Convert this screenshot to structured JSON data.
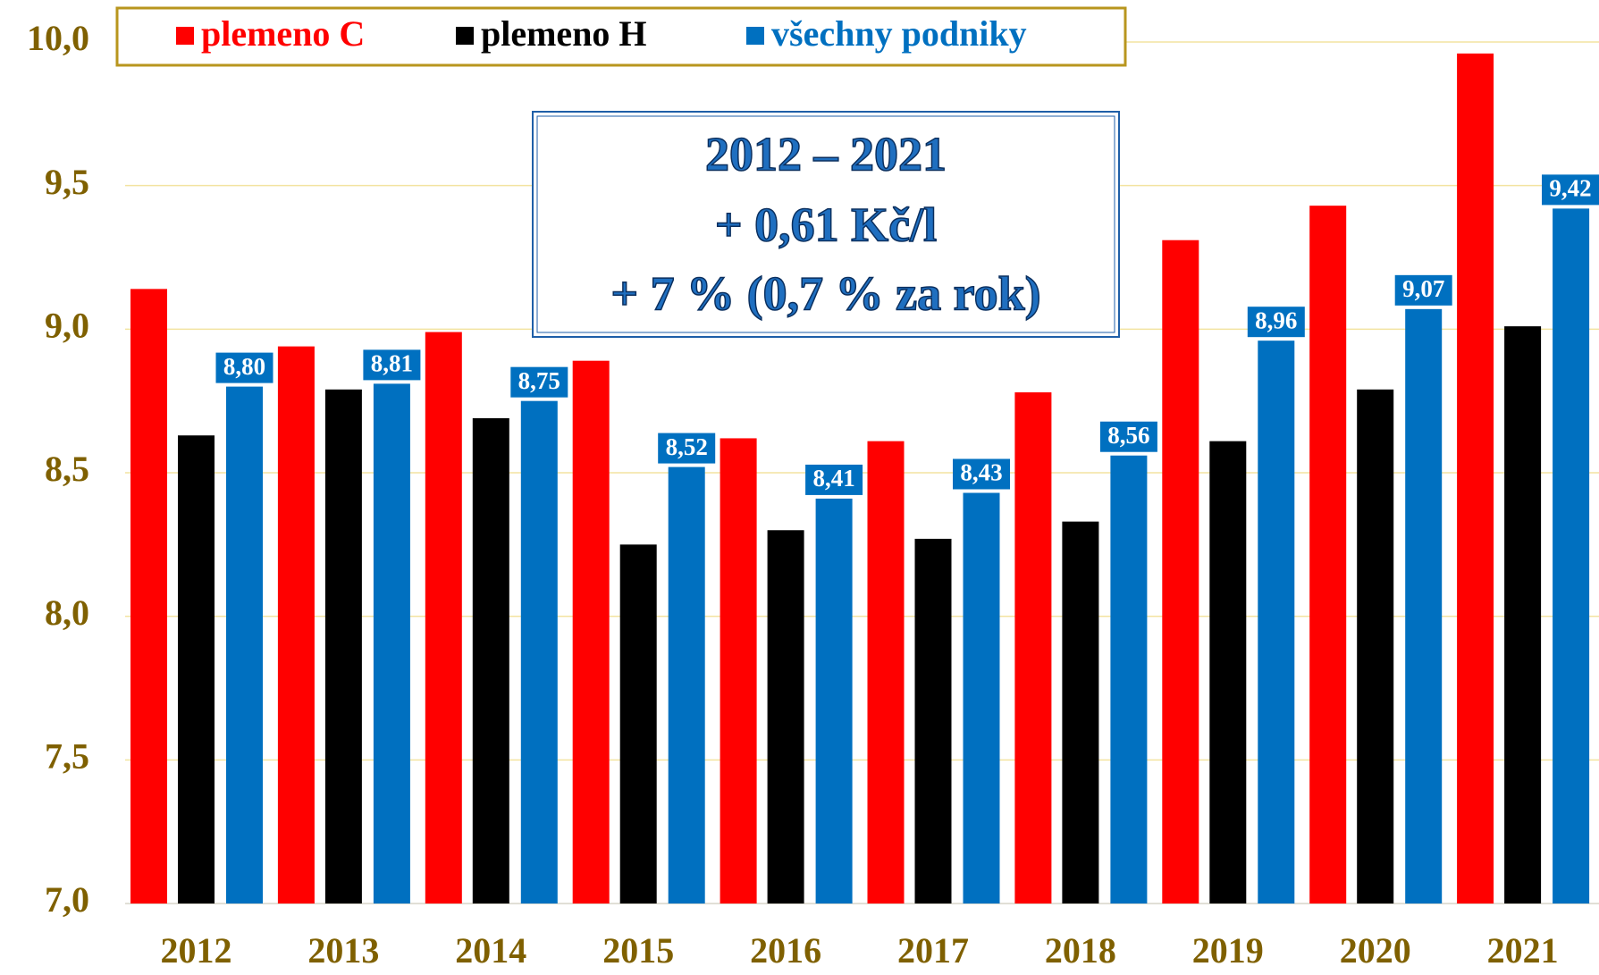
{
  "chart_data": {
    "type": "bar",
    "categories": [
      "2012",
      "2013",
      "2014",
      "2015",
      "2016",
      "2017",
      "2018",
      "2019",
      "2020",
      "2021"
    ],
    "series": [
      {
        "name": "plemeno C",
        "color": "#ff0000",
        "values": [
          9.14,
          8.94,
          8.99,
          8.89,
          8.62,
          8.61,
          8.78,
          9.31,
          9.43,
          9.96
        ]
      },
      {
        "name": "plemeno H",
        "color": "#000000",
        "values": [
          8.63,
          8.79,
          8.69,
          8.25,
          8.3,
          8.27,
          8.33,
          8.61,
          8.79,
          9.01
        ]
      },
      {
        "name": "všechny podniky",
        "color": "#0070c0",
        "values": [
          8.8,
          8.81,
          8.75,
          8.52,
          8.41,
          8.43,
          8.56,
          8.96,
          9.07,
          9.42
        ],
        "value_labels": [
          "8,80",
          "8,81",
          "8,75",
          "8,52",
          "8,41",
          "8,43",
          "8,56",
          "8,96",
          "9,07",
          "9,42"
        ]
      }
    ],
    "ylim": [
      7,
      10
    ],
    "yticks": [
      {
        "value": 7,
        "label": "7,0"
      },
      {
        "value": 7.5,
        "label": "7,5"
      },
      {
        "value": 8,
        "label": "8,0"
      },
      {
        "value": 8.5,
        "label": "8,5"
      },
      {
        "value": 9,
        "label": "9,0"
      },
      {
        "value": 9.5,
        "label": "9,5"
      },
      {
        "value": 10,
        "label": "10,0"
      }
    ],
    "grid": true,
    "annotation": [
      "2012 – 2021",
      "+ 0,61 Kč/l",
      "+ 7 % (0,7 % za rok)"
    ]
  }
}
